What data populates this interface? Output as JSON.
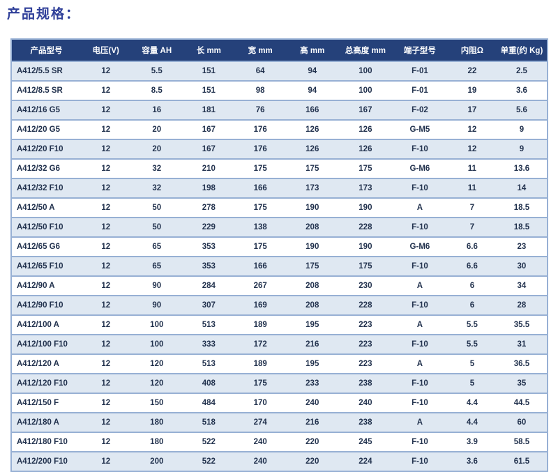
{
  "title": "产品规格：",
  "colors": {
    "title_text": "#2f3f99",
    "header_bg": "#25417a",
    "header_text": "#fbfcfe",
    "row_shaded_bg": "#dfe8f2",
    "row_plain_bg": "#ffffff",
    "border": "#97b0d4",
    "cell_text": "#22324e"
  },
  "table": {
    "columns": [
      "产品型号",
      "电压(V)",
      "容量 AH",
      "长 mm",
      "宽 mm",
      "高 mm",
      "总高度 mm",
      "端子型号",
      "内阻Ω",
      "单重(约 Kg)"
    ],
    "rows": [
      [
        "A412/5.5 SR",
        "12",
        "5.5",
        "151",
        "64",
        "94",
        "100",
        "F-01",
        "22",
        "2.5"
      ],
      [
        "A412/8.5 SR",
        "12",
        "8.5",
        "151",
        "98",
        "94",
        "100",
        "F-01",
        "19",
        "3.6"
      ],
      [
        "A412/16 G5",
        "12",
        "16",
        "181",
        "76",
        "166",
        "167",
        "F-02",
        "17",
        "5.6"
      ],
      [
        "A412/20 G5",
        "12",
        "20",
        "167",
        "176",
        "126",
        "126",
        "G-M5",
        "12",
        "9"
      ],
      [
        "A412/20 F10",
        "12",
        "20",
        "167",
        "176",
        "126",
        "126",
        "F-10",
        "12",
        "9"
      ],
      [
        "A412/32 G6",
        "12",
        "32",
        "210",
        "175",
        "175",
        "175",
        "G-M6",
        "11",
        "13.6"
      ],
      [
        "A412/32 F10",
        "12",
        "32",
        "198",
        "166",
        "173",
        "173",
        "F-10",
        "11",
        "14"
      ],
      [
        "A412/50 A",
        "12",
        "50",
        "278",
        "175",
        "190",
        "190",
        "A",
        "7",
        "18.5"
      ],
      [
        "A412/50 F10",
        "12",
        "50",
        "229",
        "138",
        "208",
        "228",
        "F-10",
        "7",
        "18.5"
      ],
      [
        "A412/65 G6",
        "12",
        "65",
        "353",
        "175",
        "190",
        "190",
        "G-M6",
        "6.6",
        "23"
      ],
      [
        "A412/65 F10",
        "12",
        "65",
        "353",
        "166",
        "175",
        "175",
        "F-10",
        "6.6",
        "30"
      ],
      [
        "A412/90 A",
        "12",
        "90",
        "284",
        "267",
        "208",
        "230",
        "A",
        "6",
        "34"
      ],
      [
        "A412/90 F10",
        "12",
        "90",
        "307",
        "169",
        "208",
        "228",
        "F-10",
        "6",
        "28"
      ],
      [
        "A412/100 A",
        "12",
        "100",
        "513",
        "189",
        "195",
        "223",
        "A",
        "5.5",
        "35.5"
      ],
      [
        "A412/100 F10",
        "12",
        "100",
        "333",
        "172",
        "216",
        "223",
        "F-10",
        "5.5",
        "31"
      ],
      [
        "A412/120 A",
        "12",
        "120",
        "513",
        "189",
        "195",
        "223",
        "A",
        "5",
        "36.5"
      ],
      [
        "A412/120 F10",
        "12",
        "120",
        "408",
        "175",
        "233",
        "238",
        "F-10",
        "5",
        "35"
      ],
      [
        "A412/150 F",
        "12",
        "150",
        "484",
        "170",
        "240",
        "240",
        "F-10",
        "4.4",
        "44.5"
      ],
      [
        "A412/180 A",
        "12",
        "180",
        "518",
        "274",
        "216",
        "238",
        "A",
        "4.4",
        "60"
      ],
      [
        "A412/180 F10",
        "12",
        "180",
        "522",
        "240",
        "220",
        "245",
        "F-10",
        "3.9",
        "58.5"
      ],
      [
        "A412/200 F10",
        "12",
        "200",
        "522",
        "240",
        "220",
        "224",
        "F-10",
        "3.6",
        "61.5"
      ]
    ]
  }
}
